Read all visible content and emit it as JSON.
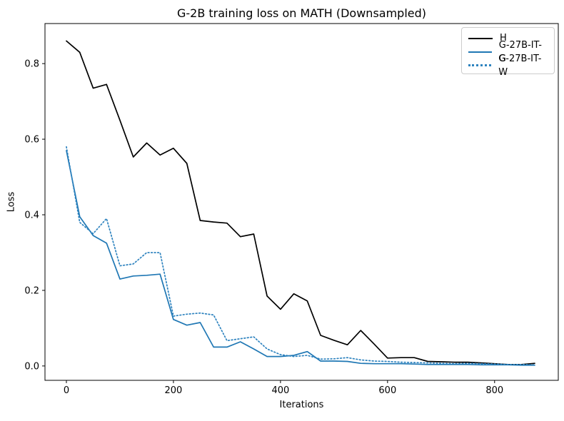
{
  "figure": {
    "background": "#ffffff",
    "axis_color": "#000000",
    "text_color": "#000000",
    "legend_border_color": "#cccccc"
  },
  "chart_data": {
    "type": "line",
    "title": "G-2B training loss on MATH (Downsampled)",
    "xlabel": "Iterations",
    "ylabel": "Loss",
    "x_ticks": [
      0,
      200,
      400,
      600,
      800
    ],
    "y_ticks": [
      0.0,
      0.2,
      0.4,
      0.6,
      0.8
    ],
    "xlim": [
      -40,
      919
    ],
    "ylim": [
      -0.038,
      0.906
    ],
    "grid": false,
    "legend_position": "upper right",
    "x": [
      0,
      25,
      50,
      75,
      100,
      125,
      150,
      175,
      200,
      225,
      250,
      275,
      300,
      325,
      350,
      375,
      400,
      425,
      450,
      475,
      500,
      525,
      550,
      575,
      600,
      625,
      650,
      675,
      700,
      725,
      750,
      775,
      800,
      825,
      850,
      875
    ],
    "series": [
      {
        "name": "H",
        "color": "#000000",
        "style": "solid",
        "values": [
          0.86,
          0.83,
          0.735,
          0.745,
          0.65,
          0.553,
          0.59,
          0.558,
          0.576,
          0.536,
          0.385,
          0.381,
          0.378,
          0.342,
          0.349,
          0.185,
          0.15,
          0.191,
          0.172,
          0.081,
          0.068,
          0.056,
          0.094,
          0.058,
          0.021,
          0.022,
          0.022,
          0.012,
          0.011,
          0.01,
          0.01,
          0.008,
          0.006,
          0.004,
          0.004,
          0.007
        ]
      },
      {
        "name": "G-27B-IT-G",
        "color": "#1f77b4",
        "style": "solid",
        "values": [
          0.57,
          0.395,
          0.345,
          0.325,
          0.23,
          0.238,
          0.24,
          0.243,
          0.123,
          0.108,
          0.115,
          0.05,
          0.05,
          0.064,
          0.045,
          0.025,
          0.025,
          0.028,
          0.038,
          0.013,
          0.013,
          0.012,
          0.007,
          0.006,
          0.006,
          0.006,
          0.005,
          0.004,
          0.004,
          0.004,
          0.004,
          0.003,
          0.003,
          0.003,
          0.002,
          0.002
        ]
      },
      {
        "name": "G-27B-IT-W",
        "color": "#2e83bf",
        "style": "dotted",
        "values": [
          0.58,
          0.38,
          0.35,
          0.39,
          0.265,
          0.27,
          0.3,
          0.3,
          0.132,
          0.137,
          0.14,
          0.135,
          0.067,
          0.072,
          0.077,
          0.045,
          0.03,
          0.025,
          0.028,
          0.018,
          0.019,
          0.022,
          0.016,
          0.013,
          0.012,
          0.01,
          0.009,
          0.008,
          0.007,
          0.006,
          0.007,
          0.006,
          0.005,
          0.004,
          0.004,
          0.003
        ]
      }
    ]
  }
}
